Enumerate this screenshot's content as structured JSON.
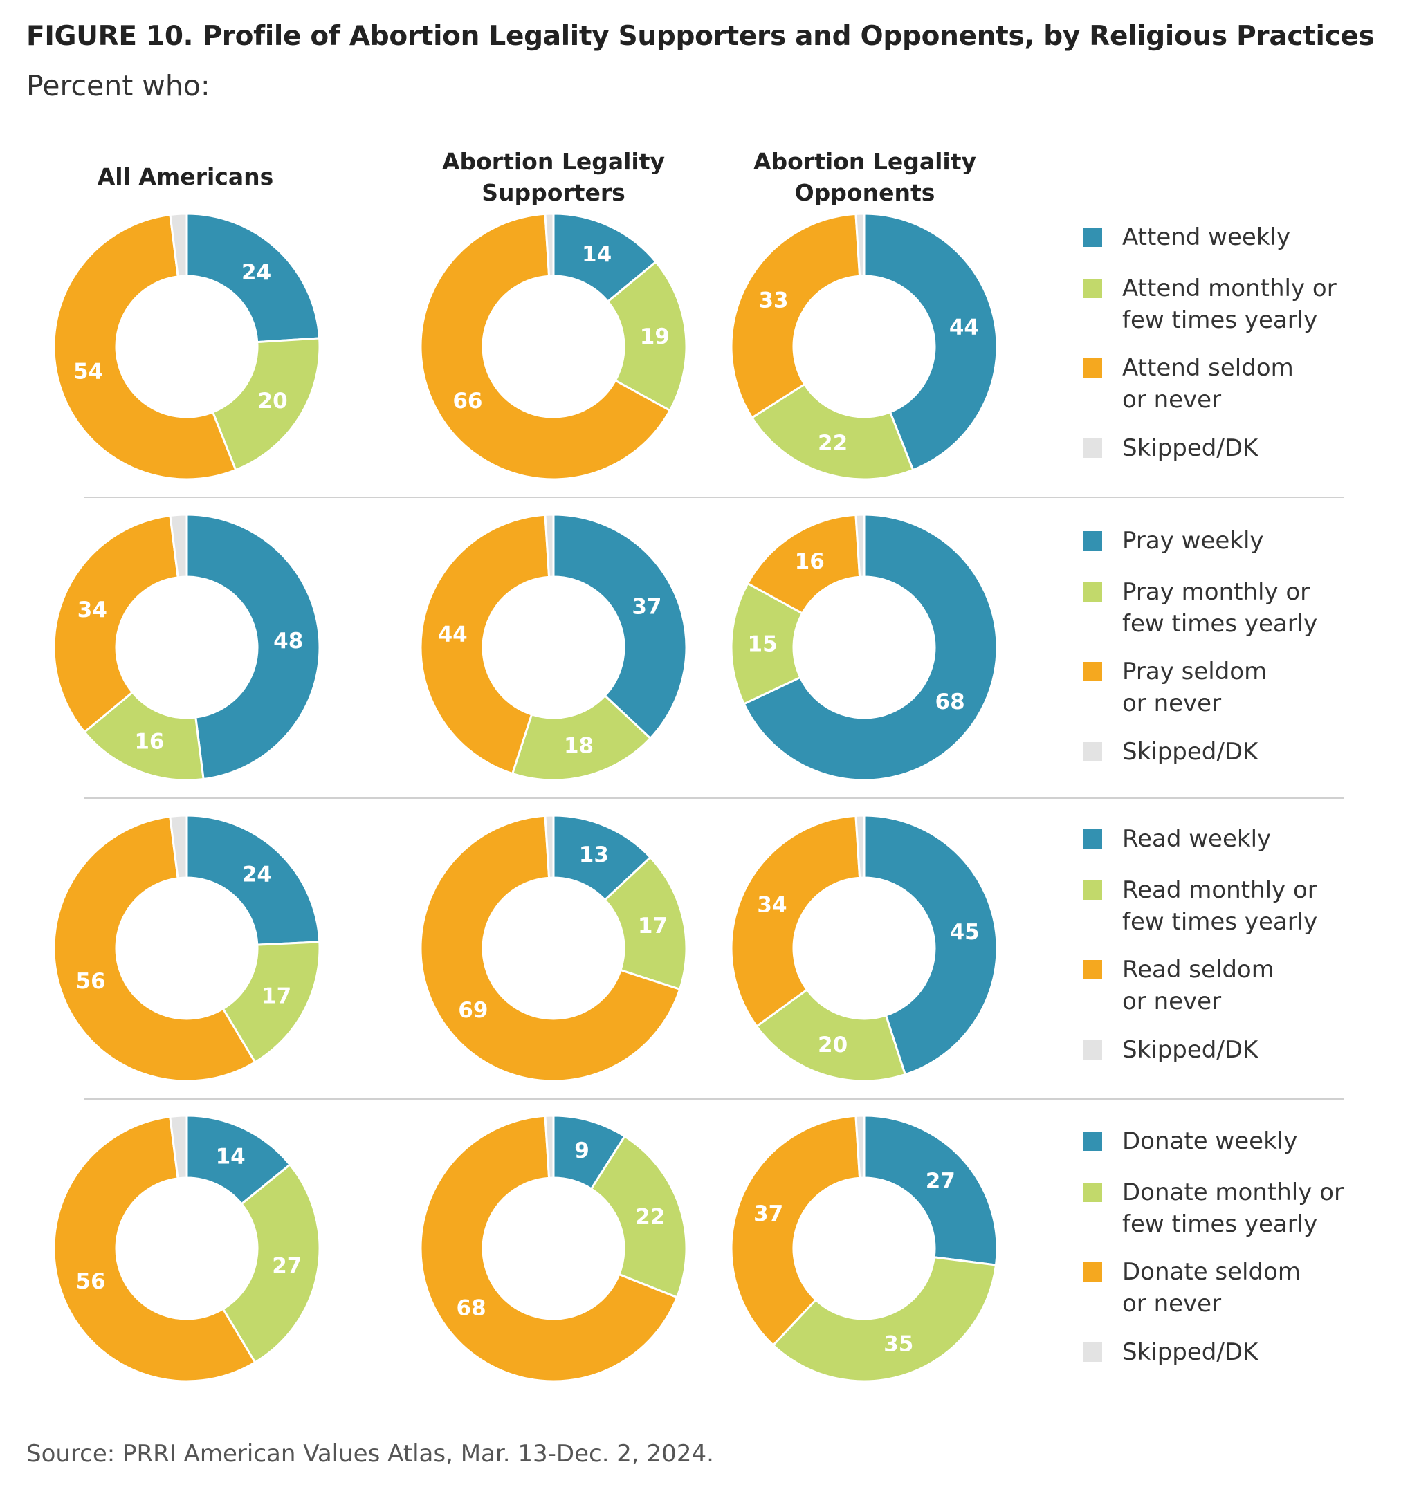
{
  "title": "FIGURE 10.  Profile of Abortion Legality Supporters and Opponents, by Religious Practices",
  "subtitle": "Percent who:",
  "columns": [
    {
      "line1": "All Americans",
      "line2": ""
    },
    {
      "line1": "Abortion Legality",
      "line2": "Supporters"
    },
    {
      "line1": "Abortion Legality",
      "line2": "Opponents"
    }
  ],
  "colors": {
    "weekly": "#3391b1",
    "monthly": "#c2d96b",
    "seldom": "#f5a81f",
    "skipped": "#e3e3e3"
  },
  "source": "Source: PRRI American Values Atlas, Mar. 13-Dec. 2, 2024.",
  "chart_data": {
    "type": "donut",
    "categories": [
      "All Americans",
      "Abortion Legality Supporters",
      "Abortion Legality Opponents"
    ],
    "rows": [
      {
        "legend": [
          {
            "key": "weekly",
            "line1": "Attend weekly",
            "line2": ""
          },
          {
            "key": "monthly",
            "line1": "Attend monthly or",
            "line2": "few times yearly"
          },
          {
            "key": "seldom",
            "line1": "Attend seldom",
            "line2": "or never"
          },
          {
            "key": "skipped",
            "line1": "Skipped/DK",
            "line2": ""
          }
        ],
        "series": [
          {
            "weekly": 24,
            "monthly": 20,
            "seldom": 54,
            "skipped": 2
          },
          {
            "weekly": 14,
            "monthly": 19,
            "seldom": 66,
            "skipped": 1
          },
          {
            "weekly": 44,
            "monthly": 22,
            "seldom": 33,
            "skipped": 1
          }
        ]
      },
      {
        "legend": [
          {
            "key": "weekly",
            "line1": "Pray weekly",
            "line2": ""
          },
          {
            "key": "monthly",
            "line1": "Pray monthly or",
            "line2": "few times yearly"
          },
          {
            "key": "seldom",
            "line1": "Pray seldom",
            "line2": "or never"
          },
          {
            "key": "skipped",
            "line1": "Skipped/DK",
            "line2": ""
          }
        ],
        "series": [
          {
            "weekly": 48,
            "monthly": 16,
            "seldom": 34,
            "skipped": 2
          },
          {
            "weekly": 37,
            "monthly": 18,
            "seldom": 44,
            "skipped": 1
          },
          {
            "weekly": 68,
            "monthly": 15,
            "seldom": 16,
            "skipped": 1
          }
        ]
      },
      {
        "legend": [
          {
            "key": "weekly",
            "line1": "Read weekly",
            "line2": ""
          },
          {
            "key": "monthly",
            "line1": "Read monthly or",
            "line2": "few times yearly"
          },
          {
            "key": "seldom",
            "line1": "Read seldom",
            "line2": "or never"
          },
          {
            "key": "skipped",
            "line1": "Skipped/DK",
            "line2": ""
          }
        ],
        "series": [
          {
            "weekly": 24,
            "monthly": 17,
            "seldom": 56,
            "skipped": 2
          },
          {
            "weekly": 13,
            "monthly": 17,
            "seldom": 69,
            "skipped": 1
          },
          {
            "weekly": 45,
            "monthly": 20,
            "seldom": 34,
            "skipped": 1
          }
        ]
      },
      {
        "legend": [
          {
            "key": "weekly",
            "line1": "Donate weekly",
            "line2": ""
          },
          {
            "key": "monthly",
            "line1": "Donate monthly or",
            "line2": "few times yearly"
          },
          {
            "key": "seldom",
            "line1": "Donate seldom",
            "line2": "or never"
          },
          {
            "key": "skipped",
            "line1": "Skipped/DK",
            "line2": ""
          }
        ],
        "series": [
          {
            "weekly": 14,
            "monthly": 27,
            "seldom": 56,
            "skipped": 2
          },
          {
            "weekly": 9,
            "monthly": 22,
            "seldom": 68,
            "skipped": 1
          },
          {
            "weekly": 27,
            "monthly": 35,
            "seldom": 37,
            "skipped": 1
          }
        ]
      }
    ]
  }
}
